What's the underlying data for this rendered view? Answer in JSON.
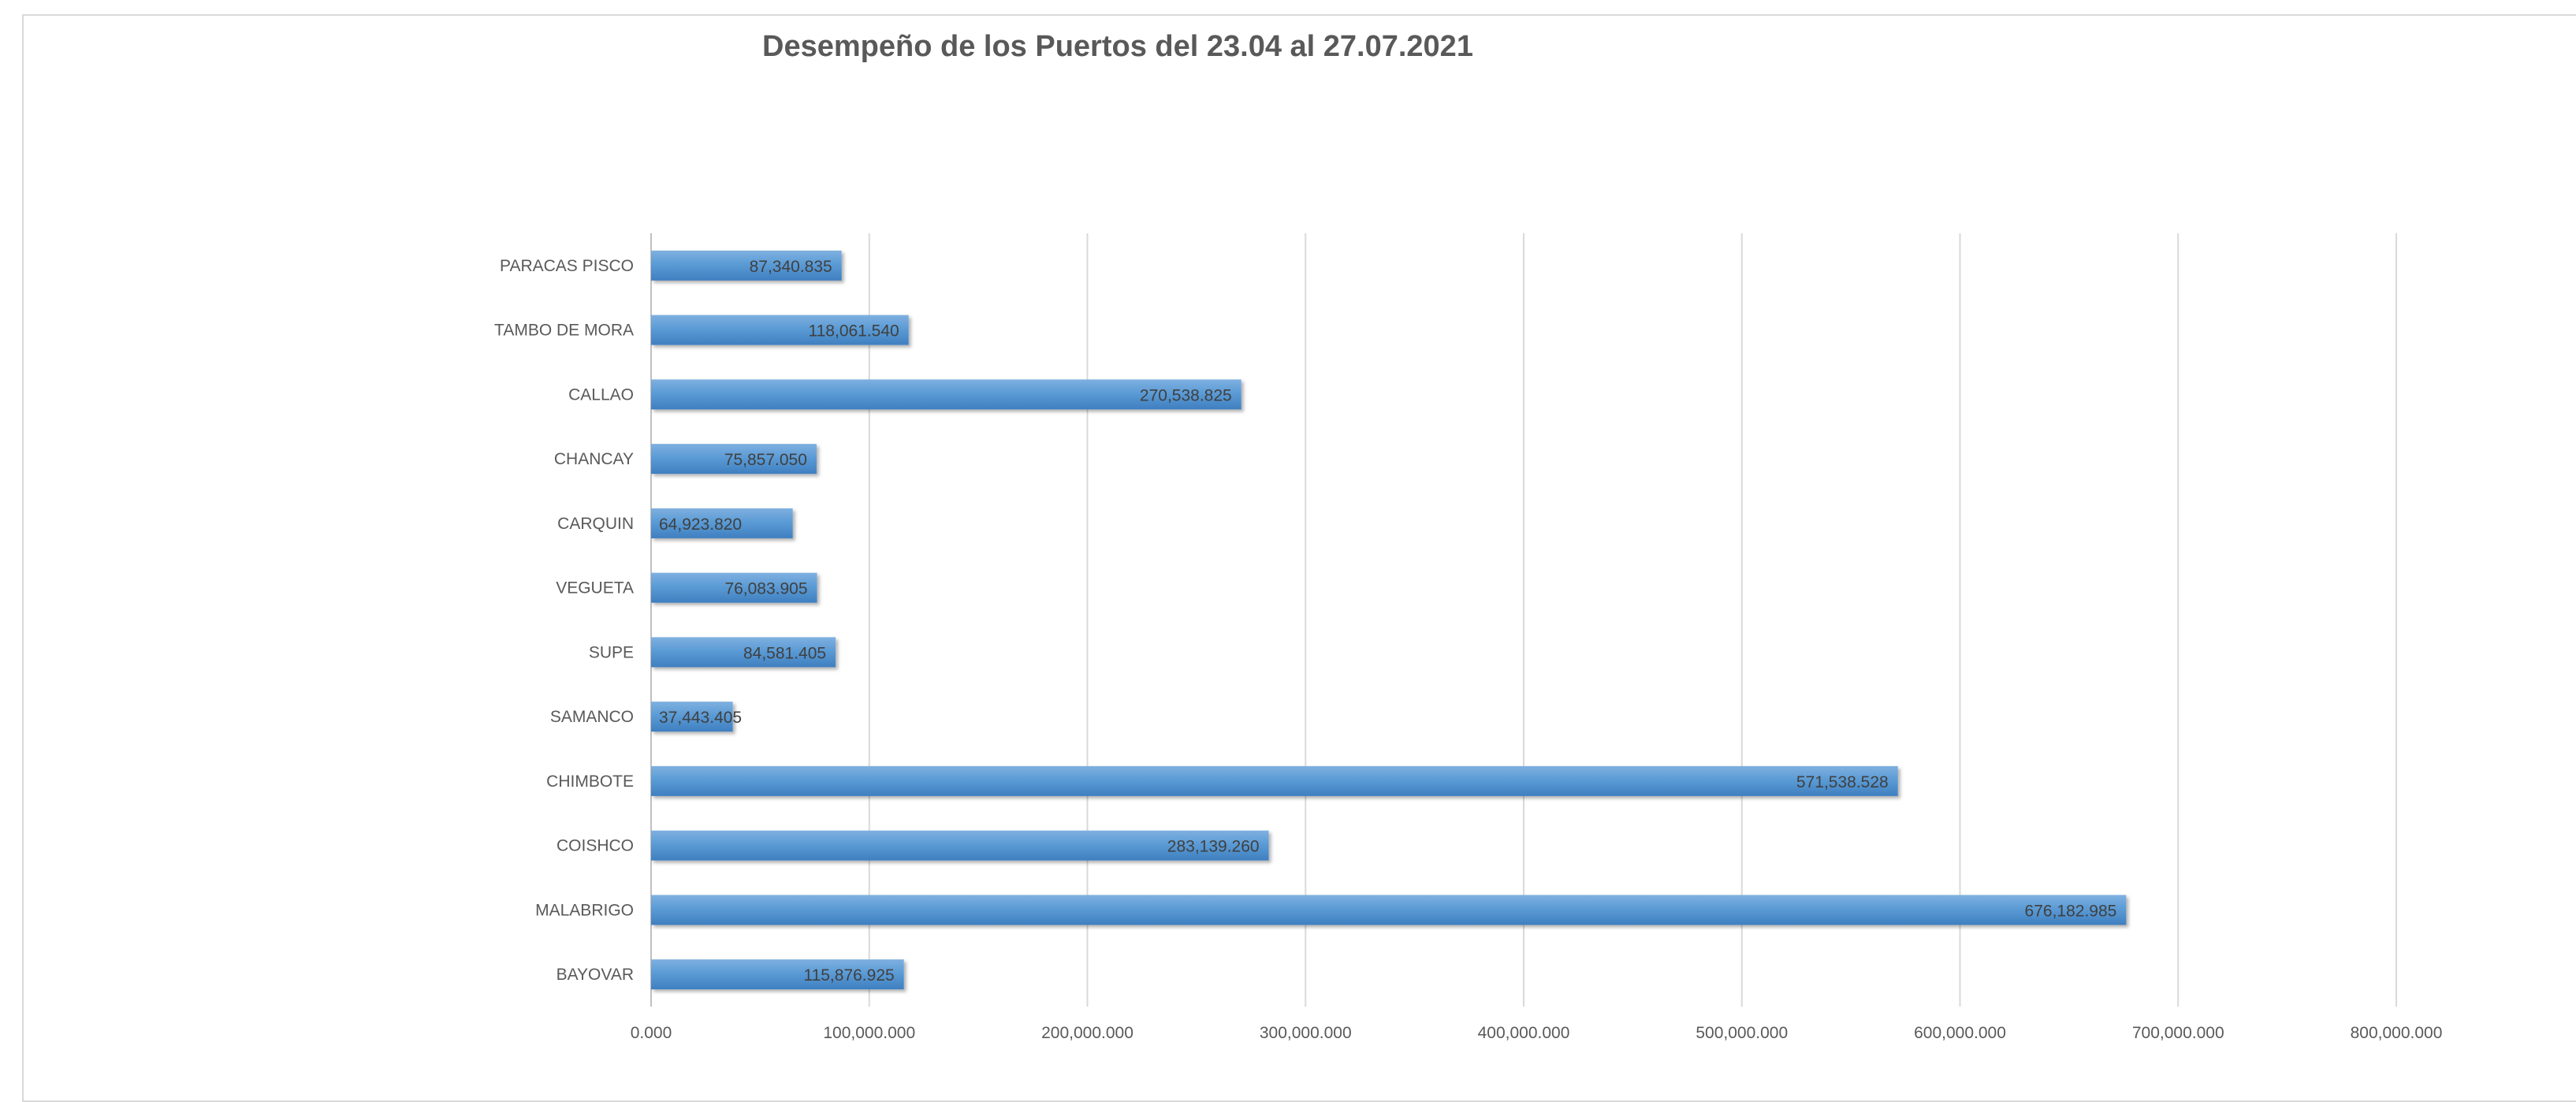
{
  "chart_data": {
    "type": "bar",
    "orientation": "horizontal",
    "title": "Desempeño de los Puertos del 23.04 al 27.07.2021",
    "xlabel": "",
    "ylabel": "",
    "categories": [
      "BAYOVAR",
      "MALABRIGO",
      "COISHCO",
      "CHIMBOTE",
      "SAMANCO",
      "SUPE",
      "VEGUETA",
      "CARQUIN",
      "CHANCAY",
      "CALLAO",
      "TAMBO DE MORA",
      "PARACAS PISCO"
    ],
    "values": [
      115876.925,
      676182.985,
      283139.26,
      571538.528,
      37443.405,
      84581.405,
      76083.905,
      64923.82,
      75857.05,
      270538.825,
      118061.54,
      87340.835
    ],
    "data_labels": [
      "115,876.925",
      "676,182.985",
      "283,139.260",
      "571,538.528",
      "37,443.405",
      "84,581.405",
      "76,083.905",
      "64,923.820",
      "75,857.050",
      "270,538.825",
      "118,061.540",
      "87,340.835"
    ],
    "xlim": [
      0,
      800000
    ],
    "x_ticks": [
      0,
      100000,
      200000,
      300000,
      400000,
      500000,
      600000,
      700000,
      800000
    ],
    "x_tick_labels": [
      "0.000",
      "100,000.000",
      "200,000.000",
      "300,000.000",
      "400,000.000",
      "500,000.000",
      "600,000.000",
      "700,000.000",
      "800,000.000"
    ],
    "grid": "vertical",
    "legend": "none",
    "bar_color": "#5b9bd5",
    "grid_color": "#d9d9d9"
  }
}
